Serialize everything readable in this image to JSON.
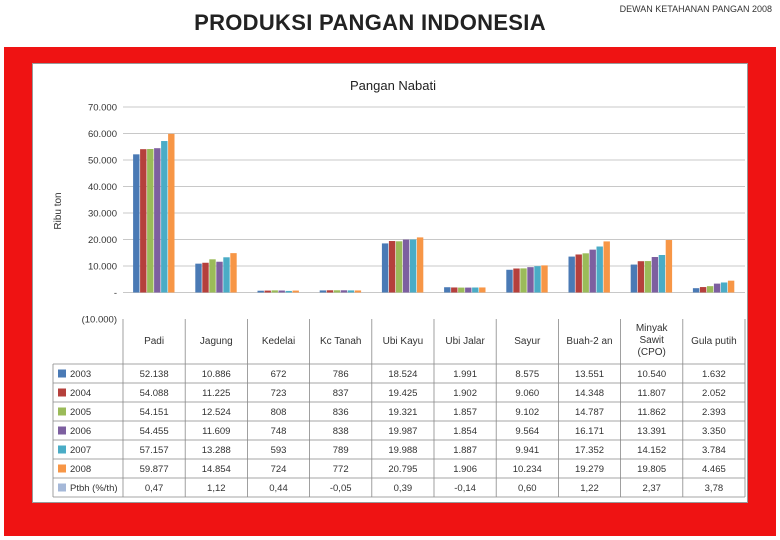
{
  "slide_title": "PRODUKSI PANGAN INDONESIA",
  "header_note": "DEWAN KETAHANAN PANGAN 2008",
  "colors": {
    "frame": "#ef1313",
    "grid": "#c8c8c8"
  },
  "chart_data": {
    "type": "bar",
    "title": "Pangan Nabati",
    "ylabel": "Ribu ton",
    "ylim": [
      -10000,
      70000
    ],
    "yticks": [
      70000,
      60000,
      50000,
      40000,
      30000,
      20000,
      10000,
      0,
      -10000
    ],
    "ytick_labels": [
      "70.000",
      "60.000",
      "50.000",
      "40.000",
      "30.000",
      "20.000",
      "10.000",
      "-",
      "(10.000)"
    ],
    "grid": true,
    "categories": [
      "Padi",
      "Jagung",
      "Kedelai",
      "Kc Tanah",
      "Ubi Kayu",
      "Ubi Jalar",
      "Sayur",
      "Buah-2 an",
      "Minyak Sawit (CPO)",
      "Gula putih"
    ],
    "series": [
      {
        "name": "2003",
        "color": "#4a7ab5",
        "values": [
          52138,
          10886,
          672,
          786,
          18524,
          1991,
          8575,
          13551,
          10540,
          1632
        ],
        "labels": [
          "52.138",
          "10.886",
          "672",
          "786",
          "18.524",
          "1.991",
          "8.575",
          "13.551",
          "10.540",
          "1.632"
        ]
      },
      {
        "name": "2004",
        "color": "#b5403c",
        "values": [
          54088,
          11225,
          723,
          837,
          19425,
          1902,
          9060,
          14348,
          11807,
          2052
        ],
        "labels": [
          "54.088",
          "11.225",
          "723",
          "837",
          "19.425",
          "1.902",
          "9.060",
          "14.348",
          "11.807",
          "2.052"
        ]
      },
      {
        "name": "2005",
        "color": "#9bbb59",
        "values": [
          54151,
          12524,
          808,
          836,
          19321,
          1857,
          9102,
          14787,
          11862,
          2393
        ],
        "labels": [
          "54.151",
          "12.524",
          "808",
          "836",
          "19.321",
          "1.857",
          "9.102",
          "14.787",
          "11.862",
          "2.393"
        ]
      },
      {
        "name": "2006",
        "color": "#7d5fa0",
        "values": [
          54455,
          11609,
          748,
          838,
          19987,
          1854,
          9564,
          16171,
          13391,
          3350
        ],
        "labels": [
          "54.455",
          "11.609",
          "748",
          "838",
          "19.987",
          "1.854",
          "9.564",
          "16.171",
          "13.391",
          "3.350"
        ]
      },
      {
        "name": "2007",
        "color": "#4aacc6",
        "values": [
          57157,
          13288,
          593,
          789,
          19988,
          1887,
          9941,
          17352,
          14152,
          3784
        ],
        "labels": [
          "57.157",
          "13.288",
          "593",
          "789",
          "19.988",
          "1.887",
          "9.941",
          "17.352",
          "14.152",
          "3.784"
        ]
      },
      {
        "name": "2008",
        "color": "#f79646",
        "values": [
          59877,
          14854,
          724,
          772,
          20795,
          1906,
          10234,
          19279,
          19805,
          4465
        ],
        "labels": [
          "59.877",
          "14.854",
          "724",
          "772",
          "20.795",
          "1.906",
          "10.234",
          "19.279",
          "19.805",
          "4.465"
        ]
      },
      {
        "name": "Ptbh (%/th)",
        "color": "#a5b8d8",
        "values": [
          0.47,
          1.12,
          0.44,
          -0.05,
          0.39,
          -0.14,
          0.6,
          1.22,
          2.37,
          3.78
        ],
        "labels": [
          "0,47",
          "1,12",
          "0,44",
          "-0,05",
          "0,39",
          "-0,14",
          "0,60",
          "1,22",
          "2,37",
          "3,78"
        ]
      }
    ]
  }
}
